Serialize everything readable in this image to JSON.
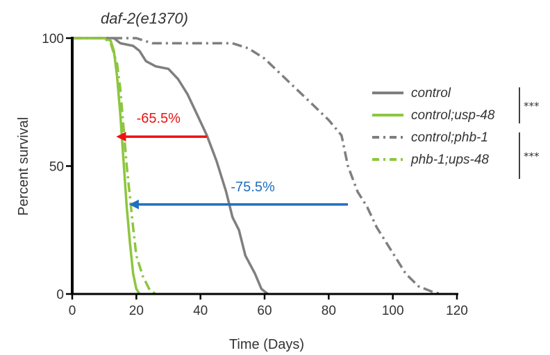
{
  "chart_data": {
    "type": "line",
    "title": "daf-2(e1370)",
    "xlabel": "Time (Days)",
    "ylabel": "Percent survival",
    "xlim": [
      0,
      120
    ],
    "ylim": [
      0,
      100
    ],
    "xticks": [
      0,
      20,
      40,
      60,
      80,
      100,
      120
    ],
    "yticks": [
      0,
      50,
      100
    ],
    "x_tick_labels": [
      "0",
      "20",
      "40",
      "60",
      "80",
      "100",
      "120"
    ],
    "y_tick_labels": [
      "0",
      "50",
      "100"
    ],
    "grid": false,
    "legend_position": "right",
    "series": [
      {
        "name": "control",
        "color": "#7f7f7f",
        "dash": "solid",
        "points": [
          [
            0,
            100
          ],
          [
            13,
            100
          ],
          [
            15,
            98
          ],
          [
            19,
            97
          ],
          [
            21,
            95
          ],
          [
            23,
            91
          ],
          [
            26,
            89
          ],
          [
            30,
            88
          ],
          [
            33,
            84
          ],
          [
            36,
            78
          ],
          [
            39,
            70
          ],
          [
            42,
            62
          ],
          [
            45,
            52
          ],
          [
            48,
            40
          ],
          [
            50,
            30
          ],
          [
            52,
            25
          ],
          [
            54,
            15
          ],
          [
            57,
            8
          ],
          [
            59,
            2
          ],
          [
            61,
            0
          ]
        ]
      },
      {
        "name": "control;usp-48",
        "color": "#8cc63f",
        "dash": "solid",
        "points": [
          [
            0,
            100
          ],
          [
            10,
            100
          ],
          [
            12,
            99
          ],
          [
            13,
            95
          ],
          [
            14,
            85
          ],
          [
            15,
            70
          ],
          [
            16,
            52
          ],
          [
            17,
            34
          ],
          [
            18,
            20
          ],
          [
            19,
            8
          ],
          [
            20,
            2
          ],
          [
            21,
            0
          ]
        ]
      },
      {
        "name": "control;phb-1",
        "color": "#7f7f7f",
        "dash": "dashdot",
        "points": [
          [
            0,
            100
          ],
          [
            20,
            100
          ],
          [
            25,
            98
          ],
          [
            50,
            98
          ],
          [
            55,
            96
          ],
          [
            60,
            92
          ],
          [
            65,
            86
          ],
          [
            70,
            80
          ],
          [
            75,
            74
          ],
          [
            80,
            68
          ],
          [
            84,
            62
          ],
          [
            86,
            50
          ],
          [
            89,
            40
          ],
          [
            92,
            34
          ],
          [
            95,
            26
          ],
          [
            100,
            16
          ],
          [
            104,
            8
          ],
          [
            108,
            3
          ],
          [
            112,
            1
          ],
          [
            115,
            0
          ]
        ]
      },
      {
        "name": "phb-1;ups-48",
        "color": "#8cc63f",
        "dash": "dashdot",
        "points": [
          [
            0,
            100
          ],
          [
            10,
            100
          ],
          [
            12,
            98
          ],
          [
            14,
            90
          ],
          [
            15,
            80
          ],
          [
            16,
            65
          ],
          [
            17,
            50
          ],
          [
            18,
            38
          ],
          [
            19,
            26
          ],
          [
            20,
            15
          ],
          [
            22,
            7
          ],
          [
            24,
            2
          ],
          [
            26,
            0
          ]
        ]
      }
    ],
    "significance": [
      {
        "label": "***",
        "series": [
          "control",
          "control;usp-48"
        ]
      },
      {
        "label": "***",
        "series": [
          "control;phb-1",
          "phb-1;ups-48"
        ]
      }
    ],
    "annotations": [
      {
        "text": "-65.5%",
        "color": "#ee1111",
        "arrow_from": [
          42,
          61.5
        ],
        "arrow_to": [
          14,
          61.5
        ]
      },
      {
        "text": "-75.5%",
        "color": "#1f6fc0",
        "arrow_from": [
          86,
          35
        ],
        "arrow_to": [
          18,
          35
        ]
      }
    ]
  }
}
